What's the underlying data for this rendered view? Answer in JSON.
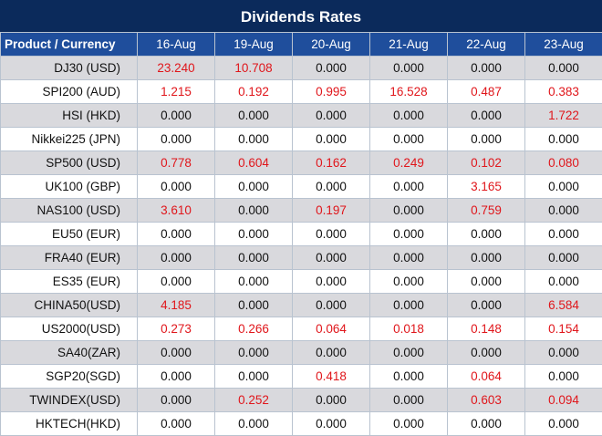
{
  "title": "Dividends Rates",
  "header_first": "Product / Currency",
  "dates": [
    "16-Aug",
    "19-Aug",
    "20-Aug",
    "21-Aug",
    "22-Aug",
    "23-Aug"
  ],
  "colors": {
    "title_bg": "#0b2a5b",
    "header_bg": "#1f4e9c",
    "stripe": "#d9d9dd",
    "nonzero_text": "#e0161b"
  },
  "rows": [
    {
      "product": "DJ30 (USD)",
      "values": [
        "23.240",
        "10.708",
        "0.000",
        "0.000",
        "0.000",
        "0.000"
      ]
    },
    {
      "product": "SPI200 (AUD)",
      "values": [
        "1.215",
        "0.192",
        "0.995",
        "16.528",
        "0.487",
        "0.383"
      ]
    },
    {
      "product": "HSI (HKD)",
      "values": [
        "0.000",
        "0.000",
        "0.000",
        "0.000",
        "0.000",
        "1.722"
      ]
    },
    {
      "product": "Nikkei225 (JPN)",
      "values": [
        "0.000",
        "0.000",
        "0.000",
        "0.000",
        "0.000",
        "0.000"
      ]
    },
    {
      "product": "SP500 (USD)",
      "values": [
        "0.778",
        "0.604",
        "0.162",
        "0.249",
        "0.102",
        "0.080"
      ]
    },
    {
      "product": "UK100 (GBP)",
      "values": [
        "0.000",
        "0.000",
        "0.000",
        "0.000",
        "3.165",
        "0.000"
      ]
    },
    {
      "product": "NAS100 (USD)",
      "values": [
        "3.610",
        "0.000",
        "0.197",
        "0.000",
        "0.759",
        "0.000"
      ]
    },
    {
      "product": "EU50 (EUR)",
      "values": [
        "0.000",
        "0.000",
        "0.000",
        "0.000",
        "0.000",
        "0.000"
      ]
    },
    {
      "product": "FRA40 (EUR)",
      "values": [
        "0.000",
        "0.000",
        "0.000",
        "0.000",
        "0.000",
        "0.000"
      ]
    },
    {
      "product": "ES35 (EUR)",
      "values": [
        "0.000",
        "0.000",
        "0.000",
        "0.000",
        "0.000",
        "0.000"
      ]
    },
    {
      "product": "CHINA50(USD)",
      "values": [
        "4.185",
        "0.000",
        "0.000",
        "0.000",
        "0.000",
        "6.584"
      ]
    },
    {
      "product": "US2000(USD)",
      "values": [
        "0.273",
        "0.266",
        "0.064",
        "0.018",
        "0.148",
        "0.154"
      ]
    },
    {
      "product": "SA40(ZAR)",
      "values": [
        "0.000",
        "0.000",
        "0.000",
        "0.000",
        "0.000",
        "0.000"
      ]
    },
    {
      "product": "SGP20(SGD)",
      "values": [
        "0.000",
        "0.000",
        "0.418",
        "0.000",
        "0.064",
        "0.000"
      ]
    },
    {
      "product": "TWINDEX(USD)",
      "values": [
        "0.000",
        "0.252",
        "0.000",
        "0.000",
        "0.603",
        "0.094"
      ]
    },
    {
      "product": "HKTECH(HKD)",
      "values": [
        "0.000",
        "0.000",
        "0.000",
        "0.000",
        "0.000",
        "0.000"
      ]
    }
  ]
}
